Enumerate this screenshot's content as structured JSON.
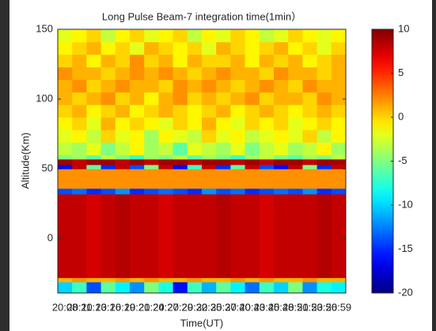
{
  "chart_data": {
    "type": "heatmap",
    "title": "Long Pulse Beam-7  integration time(1min）",
    "xlabel": "Time(UT)",
    "ylabel": "Altitude(Km)",
    "colormap": "jet",
    "categories": [
      "20:08",
      "20:11",
      "20:13",
      "20:16",
      "20:19",
      "20:21",
      "20:24",
      "20:27",
      "20:29",
      "20:32",
      "20:35",
      "20:37",
      "20:40",
      "20:43",
      "20:45",
      "20:48",
      "20:51",
      "20:53",
      "20:56",
      "20:59"
    ],
    "y_edges": [
      -39,
      -31,
      -28,
      32,
      36,
      50,
      53,
      57,
      60,
      69,
      78,
      87,
      96,
      105,
      114,
      123,
      132,
      141,
      150
    ],
    "z": [
      [
        -10,
        -7,
        -14,
        -6,
        -9,
        -12,
        -5,
        -8,
        -16,
        -7,
        -11,
        -6,
        -9,
        -13,
        -7,
        -10,
        -5,
        -12,
        -8,
        -9
      ],
      [
        1,
        2,
        1,
        1,
        2,
        1,
        2,
        1,
        1,
        2,
        1,
        1,
        2,
        1,
        2,
        1,
        1,
        2,
        1,
        1
      ],
      [
        8,
        8,
        7.5,
        8,
        8.5,
        8,
        8,
        7.5,
        8,
        8,
        8,
        8.5,
        8,
        8,
        7.5,
        8,
        8,
        8,
        8.5,
        8
      ],
      [
        -14,
        -13,
        -15,
        -14,
        -12,
        -15,
        -14,
        -13,
        -14,
        -15,
        -12,
        -14,
        -13,
        -15,
        -14,
        -13,
        -14,
        -12,
        -15,
        -14
      ],
      [
        2,
        2,
        2,
        2,
        2,
        2,
        2,
        2,
        2,
        2,
        2,
        2,
        2,
        2,
        2,
        2,
        2,
        2,
        2,
        2
      ],
      [
        -16,
        8,
        -6,
        -15,
        8,
        -14,
        -5,
        8,
        -16,
        -7,
        8,
        -15,
        -6,
        8,
        -14,
        -16,
        8,
        -5,
        -15,
        8
      ],
      [
        9,
        8,
        9,
        9,
        8,
        9,
        8,
        9,
        9,
        8,
        9,
        9,
        8,
        9,
        8,
        9,
        9,
        8,
        9,
        9
      ],
      [
        -5,
        -4,
        -6,
        -3,
        -5,
        -7,
        -4,
        -5,
        -3,
        -6,
        -4,
        -5,
        -7,
        -4,
        -3,
        -5,
        -6,
        -4,
        -5,
        -3
      ],
      [
        -3,
        -4,
        -2,
        -5,
        -3,
        -1,
        -4,
        -3,
        -6,
        -2,
        -3,
        -4,
        -2,
        -5,
        -3,
        -2,
        -4,
        -3,
        -1,
        -4
      ],
      [
        -2,
        -1,
        -3,
        0,
        -2,
        -1,
        -4,
        -1,
        -2,
        -3,
        0,
        -2,
        -1,
        -3,
        -2,
        -1,
        -2,
        0,
        -3,
        -1
      ],
      [
        -1,
        0,
        -2,
        1,
        -1,
        0,
        -1,
        -2,
        0,
        -1,
        1,
        -1,
        -2,
        0,
        -1,
        0,
        -2,
        -1,
        0,
        -1
      ],
      [
        0,
        1,
        -1,
        0,
        1,
        -1,
        0,
        1,
        0,
        -1,
        0,
        1,
        -1,
        0,
        1,
        0,
        -1,
        0,
        1,
        0
      ],
      [
        1,
        0,
        1,
        2,
        0,
        1,
        -1,
        1,
        2,
        0,
        1,
        0,
        1,
        2,
        0,
        1,
        1,
        0,
        2,
        1
      ],
      [
        1,
        2,
        0,
        1,
        2,
        1,
        1,
        0,
        2,
        1,
        2,
        1,
        0,
        1,
        2,
        1,
        0,
        2,
        1,
        1
      ],
      [
        2,
        1,
        1,
        0,
        1,
        2,
        1,
        2,
        1,
        0,
        1,
        2,
        1,
        1,
        0,
        2,
        1,
        1,
        0,
        1
      ],
      [
        0,
        1,
        -1,
        1,
        0,
        2,
        0,
        1,
        -1,
        1,
        0,
        0,
        1,
        -1,
        1,
        0,
        1,
        -1,
        0,
        1
      ],
      [
        -1,
        0,
        1,
        -1,
        0,
        -2,
        1,
        0,
        -1,
        0,
        -2,
        1,
        0,
        -1,
        0,
        1,
        -1,
        0,
        -2,
        0
      ],
      [
        -2,
        -1,
        0,
        -3,
        -1,
        0,
        -2,
        -1,
        0,
        -3,
        -1,
        -2,
        0,
        -1,
        -3,
        -2,
        0,
        -1,
        -2,
        -1
      ]
    ],
    "ylim": [
      -39,
      150
    ],
    "yticks": [
      0,
      50,
      100,
      150
    ],
    "clim": [
      -20,
      10
    ],
    "colorbar_ticks": [
      10,
      5,
      0,
      -5,
      -10,
      -15,
      -20
    ]
  }
}
